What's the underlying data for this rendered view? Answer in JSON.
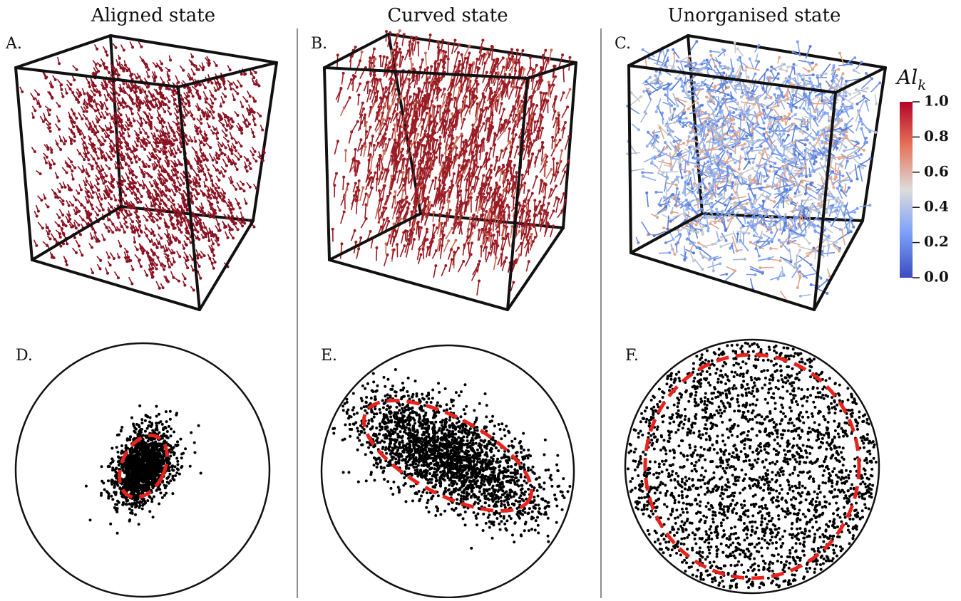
{
  "columns": [
    "Aligned state",
    "Curved state",
    "Unorganised state"
  ],
  "panels": [
    "A.",
    "B.",
    "C.",
    "D.",
    "E.",
    "F."
  ],
  "colorbar": {
    "title": "Al",
    "subscript": "k",
    "lim": [
      0,
      1
    ],
    "ticks": [
      {
        "value": 0,
        "label": "0.0"
      },
      0.2,
      0.4,
      0.6,
      0.8,
      {
        "value": 1,
        "label": "1.0"
      }
    ]
  }
}
